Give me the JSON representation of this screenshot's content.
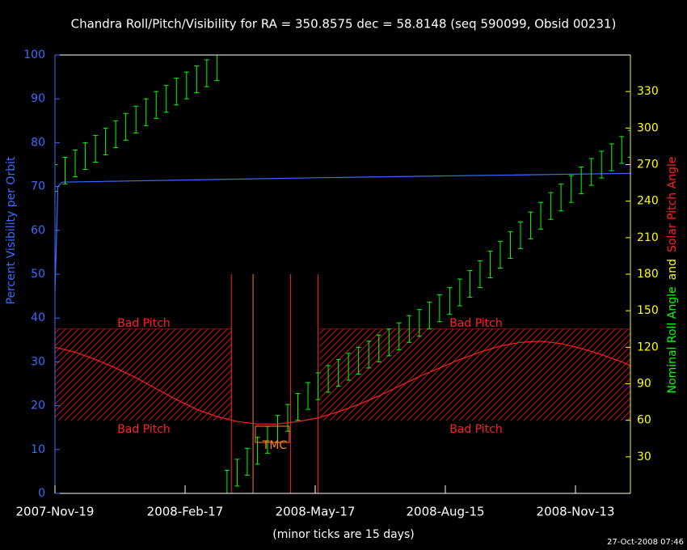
{
  "chart_data": {
    "type": "line",
    "title": "Chandra Roll/Pitch/Visibility for RA = 350.8575 dec = 58.8148 (seq 590099, Obsid 00231)",
    "y_label": "Percent Visibility per Orbit",
    "y2_label": [
      {
        "text": "Nominal Roll Angle",
        "color": "#00ff00"
      },
      {
        "text": "and",
        "color": "#ffff00"
      },
      {
        "text": "Solar Pitch Angle",
        "color": "#ff2020"
      }
    ],
    "x_label": "(minor ticks are 15 days)",
    "footer": "27-Oct-2008 07:46",
    "xlim": [
      "2007-11-19",
      "2008-12-21"
    ],
    "xticks": [
      {
        "value": "2007-11-19",
        "label": "2007-Nov-19"
      },
      {
        "value": "2008-02-17",
        "label": "2008-Feb-17"
      },
      {
        "value": "2008-05-17",
        "label": "2008-May-17"
      },
      {
        "value": "2008-08-15",
        "label": "2008-Aug-15"
      },
      {
        "value": "2008-11-13",
        "label": "2008-Nov-13"
      }
    ],
    "ylim": [
      0,
      100
    ],
    "yticks": [
      0,
      10,
      20,
      30,
      40,
      50,
      60,
      70,
      80,
      90,
      100
    ],
    "y2lim": [
      0,
      360
    ],
    "y2ticks": [
      30,
      60,
      90,
      120,
      150,
      180,
      210,
      240,
      270,
      300,
      330
    ],
    "series": [
      {
        "name": "Percent Visibility per Orbit",
        "color": "#3a6cff",
        "axis": "y",
        "x": [
          "2007-11-19",
          "2007-11-21",
          "2007-11-24",
          "2008-05-17",
          "2008-12-21"
        ],
        "values": [
          46,
          70,
          71,
          72,
          73
        ]
      },
      {
        "name": "Nominal Roll Angle",
        "color": "#00ff00",
        "axis": "y2",
        "error_bars": true,
        "x": [
          "2007-11-19",
          "2007-11-26",
          "2007-12-03",
          "2007-12-10",
          "2007-12-17",
          "2007-12-24",
          "2007-12-31",
          "2008-01-07",
          "2008-01-14",
          "2008-01-21",
          "2008-01-28",
          "2008-02-04",
          "2008-02-11",
          "2008-02-18",
          "2008-02-25",
          "2008-03-03",
          "2008-03-10",
          "2008-03-13",
          "2008-03-17",
          "2008-03-24",
          "2008-03-31",
          "2008-04-07",
          "2008-04-14",
          "2008-04-21",
          "2008-04-28",
          "2008-05-05",
          "2008-05-12",
          "2008-05-19",
          "2008-05-26",
          "2008-06-02",
          "2008-06-09",
          "2008-06-16",
          "2008-06-23",
          "2008-06-30",
          "2008-07-07",
          "2008-07-14",
          "2008-07-21",
          "2008-07-28",
          "2008-08-04",
          "2008-08-11",
          "2008-08-18",
          "2008-08-25",
          "2008-09-01",
          "2008-09-08",
          "2008-09-15",
          "2008-09-22",
          "2008-09-29",
          "2008-10-06",
          "2008-10-13",
          "2008-10-20",
          "2008-10-27",
          "2008-11-03",
          "2008-11-10",
          "2008-11-17",
          "2008-11-24",
          "2008-12-01",
          "2008-12-08",
          "2008-12-15",
          "2008-12-21"
        ],
        "values": [
          259,
          265,
          271,
          277,
          283,
          289,
          295,
          301,
          307,
          313,
          319,
          324,
          330,
          335,
          340,
          345,
          350,
          null,
          8,
          17,
          26,
          35,
          44,
          53,
          62,
          71,
          80,
          88,
          94,
          99,
          104,
          109,
          114,
          119,
          124,
          129,
          135,
          140,
          146,
          152,
          158,
          165,
          172,
          180,
          188,
          196,
          204,
          212,
          220,
          228,
          236,
          243,
          250,
          257,
          264,
          270,
          276,
          282,
          287
        ],
        "errors": [
          11,
          11,
          11,
          11,
          11,
          11,
          11,
          11,
          11,
          11,
          11,
          11,
          11,
          11,
          11,
          11,
          11,
          null,
          11,
          11,
          11,
          11,
          11,
          11,
          11,
          11,
          11,
          11,
          11,
          11,
          11,
          11,
          11,
          11,
          11,
          11,
          11,
          11,
          11,
          11,
          11,
          11,
          11,
          11,
          11,
          11,
          11,
          11,
          11,
          11,
          11,
          11,
          11,
          11,
          11,
          11,
          11,
          11,
          11
        ]
      },
      {
        "name": "Solar Pitch Angle",
        "color": "#ff2020",
        "axis": "y2",
        "x": [
          "2007-11-19",
          "2007-12-03",
          "2007-12-17",
          "2007-12-31",
          "2008-01-14",
          "2008-01-28",
          "2008-02-11",
          "2008-02-25",
          "2008-03-10",
          "2008-03-24",
          "2008-04-07",
          "2008-04-21",
          "2008-05-05",
          "2008-05-19",
          "2008-06-02",
          "2008-06-16",
          "2008-06-30",
          "2008-07-14",
          "2008-07-28",
          "2008-08-11",
          "2008-08-25",
          "2008-09-08",
          "2008-09-22",
          "2008-10-06",
          "2008-10-20",
          "2008-11-03",
          "2008-11-17",
          "2008-12-01",
          "2008-12-15",
          "2008-12-21"
        ],
        "values": [
          120,
          116,
          110,
          103,
          95,
          86,
          77,
          69,
          63,
          59,
          57,
          57,
          59,
          62,
          67,
          73,
          80,
          88,
          96,
          103,
          110,
          116,
          121,
          124,
          125,
          123,
          119,
          114,
          108,
          105
        ]
      }
    ],
    "regions": [
      {
        "x": [
          "2007-11-19",
          "2008-03-20"
        ],
        "y2": [
          60,
          135
        ],
        "color": "#ff2020"
      },
      {
        "x": [
          "2008-05-20",
          "2008-12-21"
        ],
        "y2": [
          60,
          135
        ],
        "color": "#ff2020"
      }
    ],
    "region_labels": [
      "Bad Pitch",
      "Bad Pitch",
      "Bad Pitch",
      "Bad Pitch"
    ],
    "vlines": [
      {
        "x": "2008-03-20",
        "y2": [
          0,
          180
        ],
        "color": "#ff2020"
      },
      {
        "x": "2008-04-04",
        "y2": [
          0,
          180
        ],
        "color": "#ff8020"
      },
      {
        "x": "2008-04-30",
        "y2": [
          0,
          180
        ],
        "color": "#ff2020"
      },
      {
        "x": "2008-05-19",
        "y2": [
          0,
          180
        ],
        "color": "#ff2020"
      }
    ],
    "tmc_label": "TMC"
  }
}
